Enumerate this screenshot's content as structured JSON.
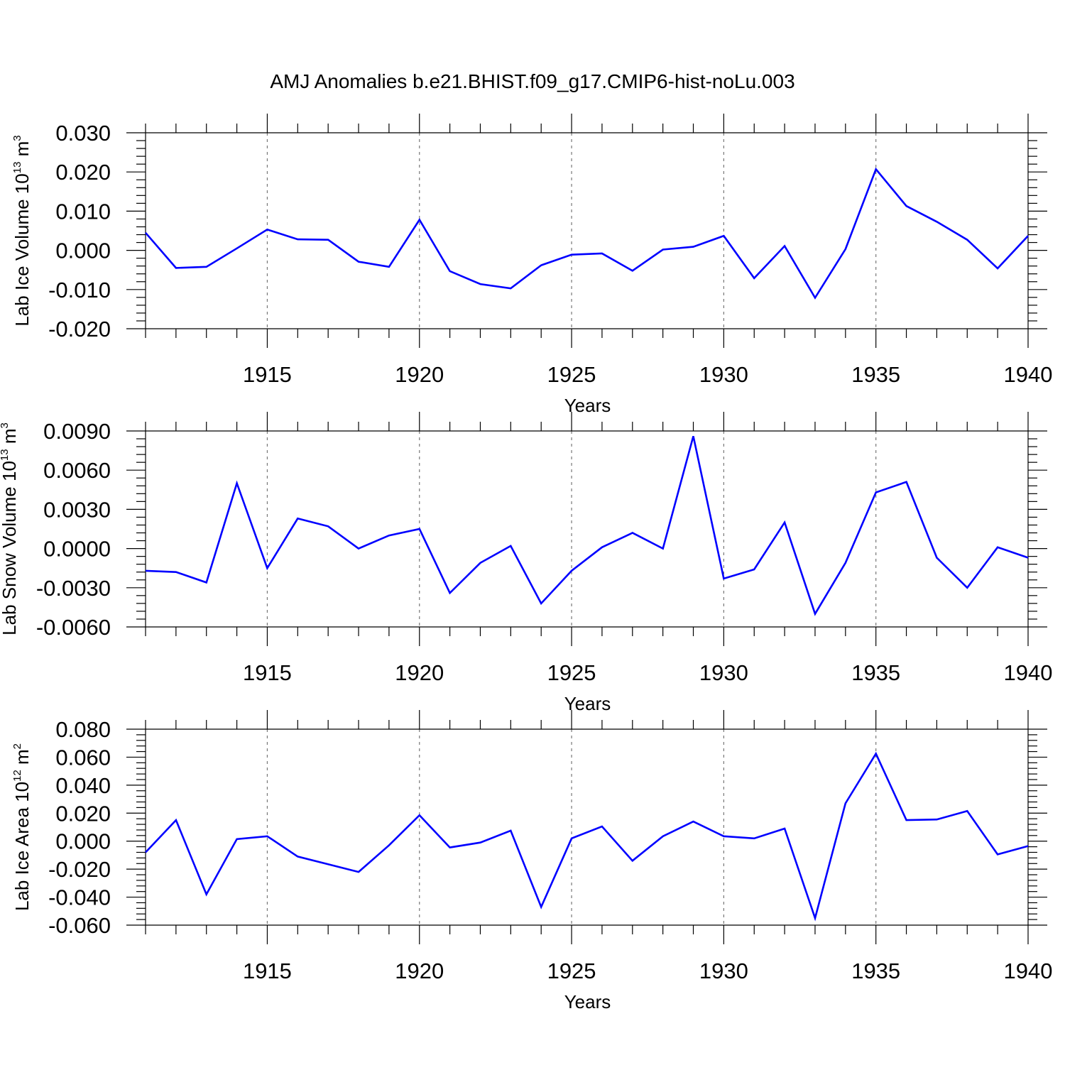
{
  "title": "AMJ Anomalies b.e21.BHIST.f09_g17.CMIP6-hist-noLu.003",
  "colors": {
    "line": "#0000ff",
    "grid": "#777777",
    "axis": "#000000"
  },
  "chart_data": [
    {
      "type": "line",
      "ylabel": {
        "text": "Lab Ice Volume 10",
        "sup": "13",
        "unit": " m",
        "unit_sup": "3"
      },
      "xlabel": "Years",
      "xlim": [
        1911,
        1940
      ],
      "ylim": [
        -0.02,
        0.03
      ],
      "xticks": [
        1915,
        1920,
        1925,
        1930,
        1935,
        1940
      ],
      "yticks": [
        -0.02,
        -0.01,
        0.0,
        0.01,
        0.02,
        0.03
      ],
      "ytick_labels": [
        "-0.020",
        "-0.010",
        "0.000",
        "0.010",
        "0.020",
        "0.030"
      ],
      "grid_x": [
        1915,
        1920,
        1925,
        1930,
        1935
      ],
      "x": [
        1911,
        1912,
        1913,
        1914,
        1915,
        1916,
        1917,
        1918,
        1919,
        1920,
        1921,
        1922,
        1923,
        1924,
        1925,
        1926,
        1927,
        1928,
        1929,
        1930,
        1931,
        1932,
        1933,
        1934,
        1935,
        1936,
        1937,
        1938,
        1939,
        1940
      ],
      "values": [
        0.0045,
        -0.0045,
        -0.0042,
        0.0005,
        0.0053,
        0.0028,
        0.0027,
        -0.0029,
        -0.0042,
        0.0078,
        -0.0053,
        -0.0086,
        -0.0097,
        -0.0038,
        -0.0011,
        -0.0008,
        -0.0052,
        0.0002,
        0.0009,
        0.0037,
        -0.0071,
        0.0011,
        -0.0121,
        0.0003,
        0.0207,
        0.0113,
        0.0073,
        0.0027,
        -0.0046,
        0.0037
      ]
    },
    {
      "type": "line",
      "ylabel": {
        "text": "Lab Snow Volume 10",
        "sup": "13",
        "unit": " m",
        "unit_sup": "3"
      },
      "xlabel": "Years",
      "xlim": [
        1911,
        1940
      ],
      "ylim": [
        -0.006,
        0.009
      ],
      "xticks": [
        1915,
        1920,
        1925,
        1930,
        1935,
        1940
      ],
      "yticks": [
        -0.006,
        -0.003,
        0.0,
        0.003,
        0.006,
        0.009
      ],
      "ytick_labels": [
        "-0.0060",
        "-0.0030",
        "0.0000",
        "0.0030",
        "0.0060",
        "0.0090"
      ],
      "grid_x": [
        1915,
        1920,
        1925,
        1930,
        1935
      ],
      "x": [
        1911,
        1912,
        1913,
        1914,
        1915,
        1916,
        1917,
        1918,
        1919,
        1920,
        1921,
        1922,
        1923,
        1924,
        1925,
        1926,
        1927,
        1928,
        1929,
        1930,
        1931,
        1932,
        1933,
        1934,
        1935,
        1936,
        1937,
        1938,
        1939,
        1940
      ],
      "values": [
        -0.0017,
        -0.0018,
        -0.0026,
        0.005,
        -0.0015,
        0.0023,
        0.0017,
        0.0,
        0.001,
        0.0015,
        -0.0034,
        -0.0011,
        0.0002,
        -0.0042,
        -0.0017,
        0.0001,
        0.0012,
        0.0,
        0.0086,
        -0.0023,
        -0.0016,
        0.002,
        -0.005,
        -0.0011,
        0.0043,
        0.0051,
        -0.0007,
        -0.003,
        0.0001,
        -0.0007
      ]
    },
    {
      "type": "line",
      "ylabel": {
        "text": "Lab Ice Area 10",
        "sup": "12",
        "unit": " m",
        "unit_sup": "2"
      },
      "xlabel": "Years",
      "xlim": [
        1911,
        1940
      ],
      "ylim": [
        -0.06,
        0.08
      ],
      "xticks": [
        1915,
        1920,
        1925,
        1930,
        1935,
        1940
      ],
      "yticks": [
        -0.06,
        -0.04,
        -0.02,
        0.0,
        0.02,
        0.04,
        0.06,
        0.08
      ],
      "ytick_labels": [
        "-0.060",
        "-0.040",
        "-0.020",
        "0.000",
        "0.020",
        "0.040",
        "0.060",
        "0.080"
      ],
      "grid_x": [
        1915,
        1920,
        1925,
        1930,
        1935
      ],
      "x": [
        1911,
        1912,
        1913,
        1914,
        1915,
        1916,
        1917,
        1918,
        1919,
        1920,
        1921,
        1922,
        1923,
        1924,
        1925,
        1926,
        1927,
        1928,
        1929,
        1930,
        1931,
        1932,
        1933,
        1934,
        1935,
        1936,
        1937,
        1938,
        1939,
        1940
      ],
      "values": [
        -0.008,
        0.015,
        -0.038,
        0.0015,
        0.0035,
        -0.011,
        -0.0165,
        -0.022,
        -0.003,
        0.0185,
        -0.0045,
        -0.001,
        0.0075,
        -0.047,
        0.002,
        0.0105,
        -0.014,
        0.0035,
        0.014,
        0.0035,
        0.002,
        0.009,
        -0.055,
        0.027,
        0.0625,
        0.015,
        0.0155,
        0.0215,
        -0.0095,
        -0.0035
      ]
    }
  ]
}
